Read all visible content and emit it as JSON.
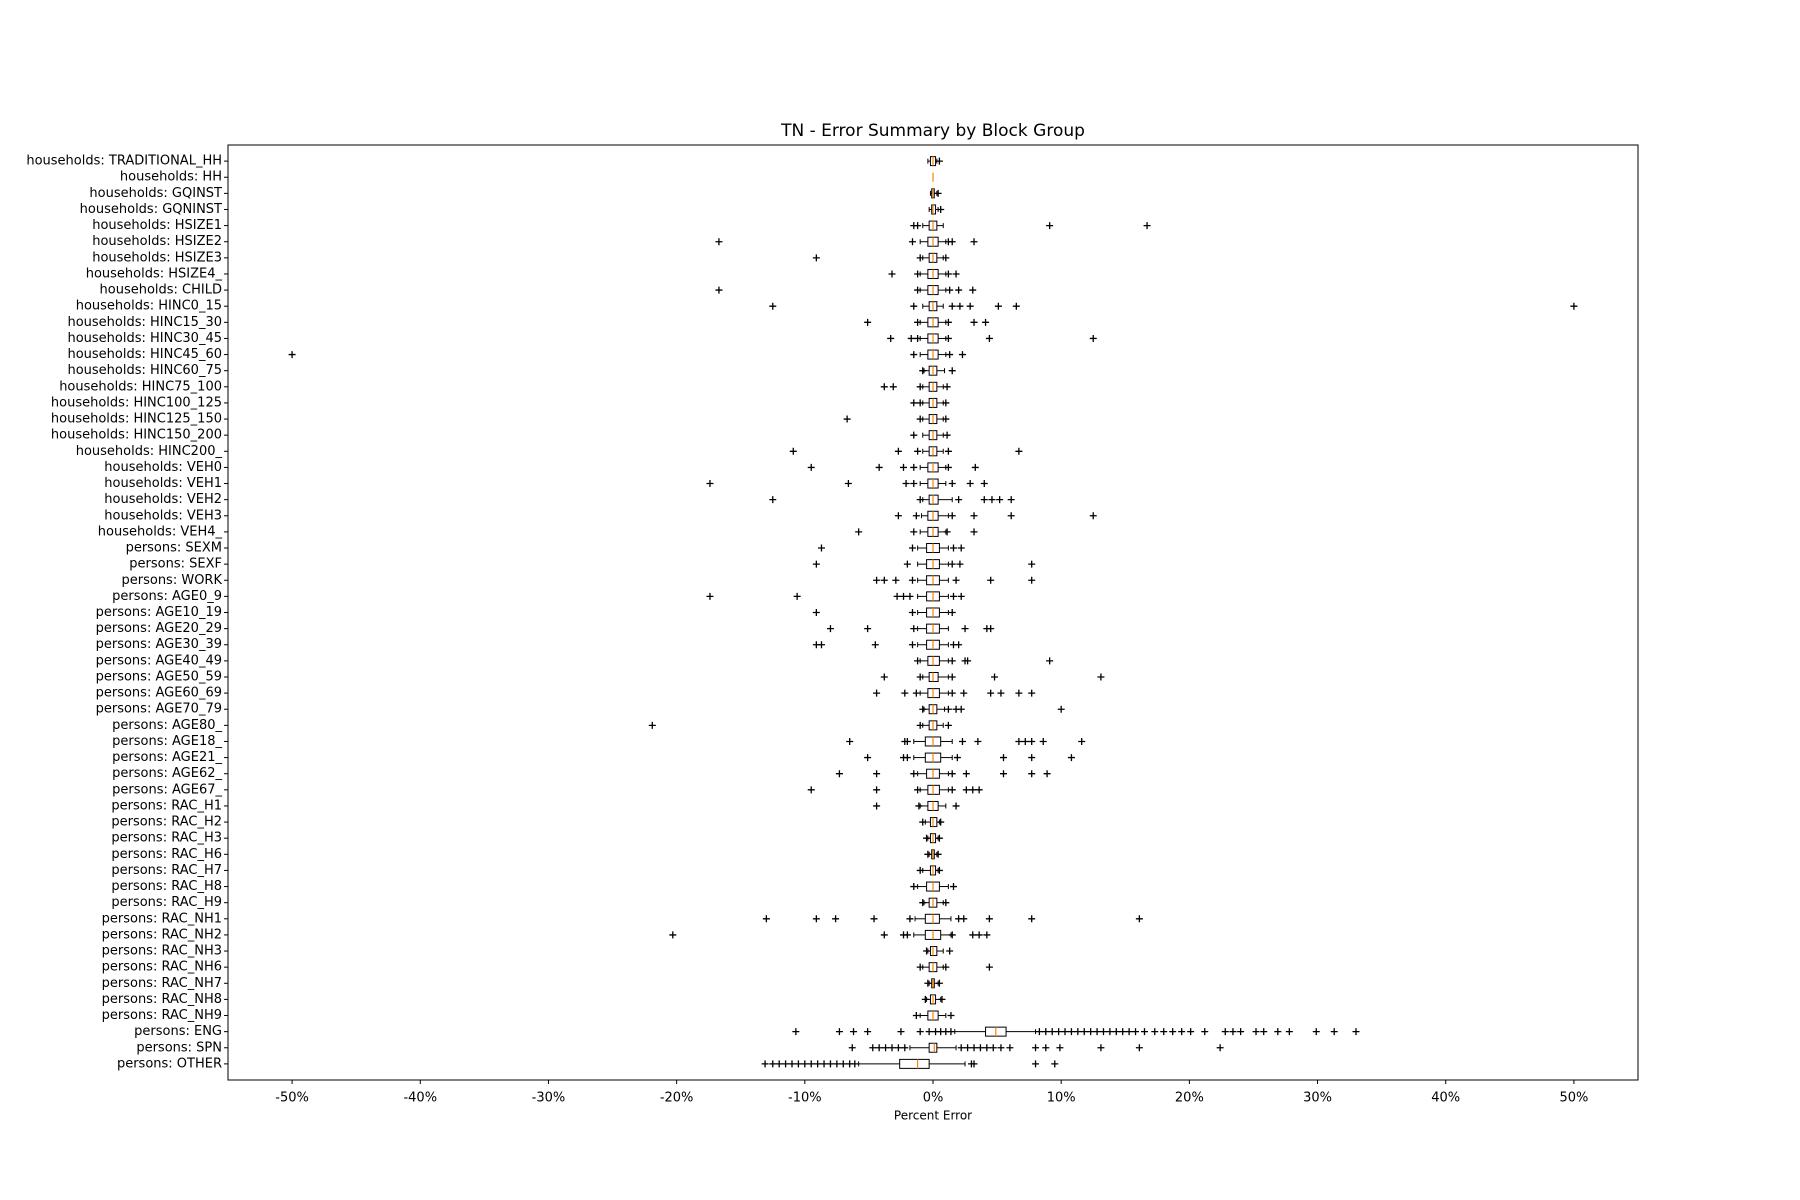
{
  "chart_data": {
    "type": "boxplot",
    "orientation": "horizontal",
    "title": "TN - Error Summary by Block Group",
    "xlabel": "Percent Error",
    "xlim": [
      -55,
      55
    ],
    "xticks": [
      {
        "value": -50,
        "label": "-50%"
      },
      {
        "value": -40,
        "label": "-40%"
      },
      {
        "value": -30,
        "label": "-30%"
      },
      {
        "value": -20,
        "label": "-20%"
      },
      {
        "value": -10,
        "label": "-10%"
      },
      {
        "value": 0,
        "label": "0%"
      },
      {
        "value": 10,
        "label": "10%"
      },
      {
        "value": 20,
        "label": "20%"
      },
      {
        "value": 30,
        "label": "30%"
      },
      {
        "value": 40,
        "label": "40%"
      },
      {
        "value": 50,
        "label": "50%"
      }
    ],
    "box_color": "#000000",
    "median_color": "#ff7f0e",
    "categories": [
      "households: TRADITIONAL_HH",
      "households: HH",
      "households: GQINST",
      "households: GQNINST",
      "households: HSIZE1",
      "households: HSIZE2",
      "households: HSIZE3",
      "households: HSIZE4_",
      "households: CHILD",
      "households: HINC0_15",
      "households: HINC15_30",
      "households: HINC30_45",
      "households: HINC45_60",
      "households: HINC60_75",
      "households: HINC75_100",
      "households: HINC100_125",
      "households: HINC125_150",
      "households: HINC150_200",
      "households: HINC200_",
      "households: VEH0",
      "households: VEH1",
      "households: VEH2",
      "households: VEH3",
      "households: VEH4_",
      "persons: SEXM",
      "persons: SEXF",
      "persons: WORK",
      "persons: AGE0_9",
      "persons: AGE10_19",
      "persons: AGE20_29",
      "persons: AGE30_39",
      "persons: AGE40_49",
      "persons: AGE50_59",
      "persons: AGE60_69",
      "persons: AGE70_79",
      "persons: AGE80_",
      "persons: AGE18_",
      "persons: AGE21_",
      "persons: AGE62_",
      "persons: AGE67_",
      "persons: RAC_H1",
      "persons: RAC_H2",
      "persons: RAC_H3",
      "persons: RAC_H6",
      "persons: RAC_H7",
      "persons: RAC_H8",
      "persons: RAC_H9",
      "persons: RAC_NH1",
      "persons: RAC_NH2",
      "persons: RAC_NH3",
      "persons: RAC_NH6",
      "persons: RAC_NH7",
      "persons: RAC_NH8",
      "persons: RAC_NH9",
      "persons: ENG",
      "persons: SPN",
      "persons: OTHER"
    ],
    "boxes": [
      [
        -0.4,
        -0.2,
        0,
        0.2,
        0.3
      ],
      [
        0,
        0,
        0,
        0,
        0
      ],
      [
        -0.2,
        -0.1,
        0,
        0.1,
        0.3
      ],
      [
        -0.3,
        -0.1,
        0,
        0.2,
        0.4
      ],
      [
        -0.8,
        -0.3,
        0,
        0.3,
        0.8
      ],
      [
        -1,
        -0.4,
        0,
        0.4,
        1
      ],
      [
        -0.8,
        -0.3,
        0,
        0.3,
        0.8
      ],
      [
        -1,
        -0.4,
        0,
        0.4,
        1
      ],
      [
        -1,
        -0.4,
        0,
        0.4,
        1
      ],
      [
        -0.8,
        -0.3,
        0,
        0.3,
        0.8
      ],
      [
        -1,
        -0.4,
        0,
        0.4,
        1
      ],
      [
        -1,
        -0.4,
        0,
        0.4,
        1
      ],
      [
        -1,
        -0.4,
        0,
        0.4,
        1
      ],
      [
        -0.7,
        -0.3,
        0,
        0.3,
        0.9
      ],
      [
        -0.8,
        -0.3,
        0,
        0.3,
        0.8
      ],
      [
        -0.8,
        -0.3,
        0,
        0.3,
        0.8
      ],
      [
        -0.8,
        -0.3,
        0,
        0.3,
        0.8
      ],
      [
        -0.8,
        -0.3,
        0,
        0.3,
        0.8
      ],
      [
        -0.8,
        -0.3,
        0,
        0.3,
        0.8
      ],
      [
        -1,
        -0.4,
        0,
        0.4,
        1
      ],
      [
        -1,
        -0.4,
        0,
        0.4,
        1
      ],
      [
        -0.8,
        -0.3,
        0,
        0.4,
        1.5
      ],
      [
        -0.9,
        -0.4,
        0,
        0.4,
        1.2
      ],
      [
        -1,
        -0.4,
        0,
        0.4,
        1
      ],
      [
        -1.2,
        -0.5,
        0,
        0.5,
        1.2
      ],
      [
        -1.2,
        -0.5,
        0,
        0.5,
        1.2
      ],
      [
        -1.2,
        -0.5,
        0,
        0.5,
        1.2
      ],
      [
        -1.2,
        -0.5,
        0,
        0.5,
        1.2
      ],
      [
        -1.2,
        -0.5,
        0,
        0.5,
        1.2
      ],
      [
        -1.2,
        -0.5,
        0,
        0.5,
        1.2
      ],
      [
        -1.2,
        -0.5,
        0,
        0.5,
        1.2
      ],
      [
        -1,
        -0.4,
        0,
        0.5,
        1.2
      ],
      [
        -0.8,
        -0.3,
        0,
        0.4,
        1.2
      ],
      [
        -1,
        -0.4,
        0,
        0.5,
        1.2
      ],
      [
        -0.7,
        -0.3,
        0,
        0.3,
        0.9
      ],
      [
        -0.8,
        -0.3,
        0,
        0.3,
        0.8
      ],
      [
        -1.5,
        -0.6,
        0,
        0.6,
        1.5
      ],
      [
        -1.5,
        -0.6,
        0,
        0.6,
        1.5
      ],
      [
        -1.2,
        -0.5,
        0,
        0.5,
        1.2
      ],
      [
        -1,
        -0.4,
        0,
        0.5,
        1.2
      ],
      [
        -1,
        -0.4,
        0,
        0.4,
        1
      ],
      [
        -0.6,
        -0.2,
        0,
        0.3,
        0.5
      ],
      [
        -0.4,
        -0.2,
        0,
        0.2,
        0.4
      ],
      [
        -0.3,
        -0.1,
        0,
        0.1,
        0.3
      ],
      [
        -0.8,
        -0.2,
        0,
        0.2,
        0.4
      ],
      [
        -1.2,
        -0.5,
        0,
        0.5,
        1.2
      ],
      [
        -0.7,
        -0.3,
        0,
        0.3,
        0.8
      ],
      [
        -1.4,
        -0.6,
        0,
        0.5,
        1.4
      ],
      [
        -1.5,
        -0.6,
        0,
        0.6,
        1.4
      ],
      [
        -0.4,
        -0.2,
        0,
        0.3,
        0.8
      ],
      [
        -0.8,
        -0.3,
        0,
        0.3,
        0.8
      ],
      [
        -0.3,
        -0.1,
        0,
        0.1,
        0.4
      ],
      [
        -0.5,
        -0.2,
        0,
        0.2,
        0.6
      ],
      [
        -1,
        -0.4,
        0,
        0.4,
        1
      ],
      [
        1.7,
        4.1,
        4.9,
        5.7,
        8
      ],
      [
        -1.8,
        -0.3,
        0.1,
        0.3,
        1.8
      ],
      [
        -5.8,
        -2.6,
        -1.2,
        -0.3,
        2.5
      ]
    ],
    "fliers": [
      [
        0.5
      ],
      [],
      [
        0.4
      ],
      [
        0.6
      ],
      [
        -1.5,
        -1.2,
        9.1,
        16.7
      ],
      [
        -16.7,
        -1.6,
        1.2,
        1.5,
        3.2
      ],
      [
        -9.1,
        -1,
        1
      ],
      [
        -3.2,
        -1.2,
        1.2,
        1.8
      ],
      [
        -16.7,
        -1.2,
        1.3,
        2,
        3.1
      ],
      [
        -12.5,
        -1.5,
        1.5,
        2.1,
        2.9,
        5.1,
        6.5,
        50
      ],
      [
        -5.1,
        -1.2,
        1.2,
        3.2,
        4.1
      ],
      [
        -3.3,
        -1.7,
        -1.2,
        1.2,
        4.4,
        12.5
      ],
      [
        -50,
        -1.5,
        1.3,
        2.3
      ],
      [
        -0.8,
        1.5
      ],
      [
        -3.8,
        -3.1,
        -1,
        1.1
      ],
      [
        -1.5,
        -1,
        1
      ],
      [
        -6.7,
        -1,
        1
      ],
      [
        -1.5,
        1.1
      ],
      [
        -10.9,
        -2.7,
        -1.2,
        1.2,
        6.7
      ],
      [
        -9.5,
        -4.2,
        -2.3,
        -1.5,
        1.2,
        3.3
      ],
      [
        -17.4,
        -6.6,
        -2.1,
        -1.5,
        1.5,
        2.9,
        4
      ],
      [
        -12.5,
        -1,
        2,
        4,
        4.6,
        5.2,
        6.1
      ],
      [
        -2.7,
        -1.3,
        1.5,
        3.2,
        6.1,
        12.5
      ],
      [
        -5.8,
        -1.5,
        1.1,
        3.2
      ],
      [
        -8.7,
        -1.6,
        1.6,
        2.2
      ],
      [
        -9.1,
        -2,
        1.5,
        2.1,
        7.7
      ],
      [
        -4.4,
        -3.8,
        -2.9,
        -1.6,
        1.8,
        4.5,
        7.7
      ],
      [
        -17.4,
        -10.6,
        -2.8,
        -2.3,
        -1.8,
        1.6,
        2.2
      ],
      [
        -9.1,
        -1.6,
        1.5
      ],
      [
        -8,
        -5.1,
        -1.5,
        2.5,
        4.2,
        4.5
      ],
      [
        -9.1,
        -8.7,
        -4.5,
        -1.6,
        1.6,
        2
      ],
      [
        -1.2,
        1.5,
        2.5,
        2.7,
        9.1
      ],
      [
        -3.8,
        -1,
        1.5,
        4.8,
        13.1
      ],
      [
        -4.4,
        -2.2,
        -1.3,
        1.5,
        2.4,
        4.5,
        5.3,
        6.7,
        7.7
      ],
      [
        -0.8,
        1.2,
        1.8,
        2.2,
        10
      ],
      [
        -21.9,
        -1,
        1.2
      ],
      [
        -6.5,
        -2.2,
        -2,
        2.3,
        3.5,
        6.7,
        7.2,
        7.7,
        8.6,
        11.6
      ],
      [
        -5.1,
        -2.3,
        -2,
        1.9,
        5.5,
        7.7,
        10.8
      ],
      [
        -7.3,
        -4.4,
        -1.5,
        1.5,
        2.6,
        5.5,
        7.7,
        8.9
      ],
      [
        -9.5,
        -4.4,
        -1.2,
        1.5,
        2.6,
        3.1,
        3.6
      ],
      [
        -4.4,
        -1.1,
        1.8
      ],
      [
        -0.8,
        0.6
      ],
      [
        -0.5,
        0.5
      ],
      [
        -0.4,
        0.4
      ],
      [
        -1,
        0.5
      ],
      [
        -1.5,
        1.6
      ],
      [
        -0.8,
        1
      ],
      [
        -13,
        -9.1,
        -7.6,
        -4.6,
        -1.8,
        2,
        2.4,
        4.4,
        7.7,
        16.1
      ],
      [
        -20.3,
        -3.8,
        -2.3,
        -2,
        1.5,
        3.1,
        3.6,
        4.2
      ],
      [
        -0.5,
        1.3
      ],
      [
        -1,
        1,
        4.4
      ],
      [
        -0.4,
        0.5
      ],
      [
        -0.6,
        0.7
      ],
      [
        -1.3,
        1.4
      ],
      [
        -10.7,
        -7.3,
        -6.2,
        -5.1,
        -2.5,
        -1,
        -0.3,
        0.2,
        0.6,
        1,
        1.4,
        8.3,
        8.8,
        9.3,
        9.8,
        10.3,
        10.8,
        11.3,
        11.8,
        12.3,
        12.8,
        13.3,
        13.8,
        14.3,
        14.8,
        15.3,
        15.8,
        16.5,
        17.3,
        18,
        18.7,
        19.4,
        20.1,
        21.2,
        22.8,
        23.4,
        24,
        25.2,
        25.8,
        26.9,
        27.8,
        29.9,
        31.3,
        33
      ],
      [
        -6.3,
        -4.7,
        -4.2,
        -3.7,
        -3.2,
        -2.7,
        -2.2,
        2.2,
        2.7,
        3.2,
        3.7,
        4.2,
        4.7,
        5.3,
        6,
        8,
        8.8,
        9.9,
        13.1,
        16.1,
        22.4
      ],
      [
        -13.1,
        -12.5,
        -12,
        -11.5,
        -11,
        -10.5,
        -10,
        -9.5,
        -9,
        -8.5,
        -8,
        -7.5,
        -7,
        -6.5,
        -6.1,
        3,
        3.2,
        8,
        9.5
      ]
    ]
  }
}
